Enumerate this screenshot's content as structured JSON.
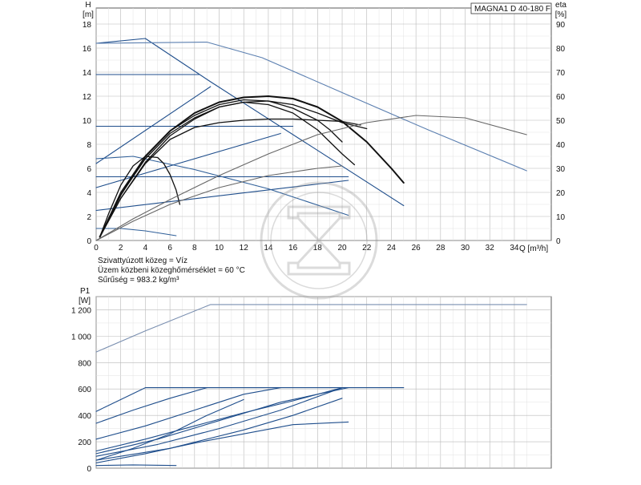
{
  "chart_data": [
    {
      "type": "line",
      "model_label": "MAGNA1 D 40-180 F",
      "y_axis_left": {
        "symbol": "H",
        "unit": "[m]",
        "ylim": [
          0,
          18
        ],
        "ticks": [
          0,
          2,
          4,
          6,
          8,
          10,
          12,
          14,
          16,
          18
        ]
      },
      "y_axis_right": {
        "symbol": "eta",
        "unit": "[%]",
        "ylim": [
          0,
          90
        ],
        "ticks": [
          0,
          10,
          20,
          30,
          40,
          50,
          60,
          70,
          80,
          90
        ]
      },
      "x_axis": {
        "label": "Q [m³/h]",
        "xlim": [
          0,
          37
        ],
        "ticks": [
          0,
          2,
          4,
          6,
          8,
          10,
          12,
          14,
          16,
          18,
          20,
          22,
          24,
          26,
          28,
          30,
          32,
          34
        ]
      },
      "info_lines": [
        "Szivattyúzott közeg = Víz",
        "Üzem közbeni közeghőmérséklet = 60 °C",
        "Sűrűség = 983.2 kg/m³"
      ],
      "grid": true,
      "series": [
        {
          "role": "max-curve",
          "axis": "left",
          "color": "#1f4e8c",
          "x": [
            0,
            4,
            9.3,
            25
          ],
          "y": [
            16.4,
            16.8,
            13.2,
            2.9
          ]
        },
        {
          "role": "max-curve-twin",
          "axis": "left",
          "color": "#5b7fb0",
          "x": [
            0,
            9,
            13.5,
            20,
            27,
            35
          ],
          "y": [
            16.4,
            16.5,
            15.2,
            12.3,
            9.2,
            5.8
          ]
        },
        {
          "role": "constant-pressure",
          "axis": "left",
          "color": "#1f4e8c",
          "x": [
            0,
            8.4
          ],
          "y": [
            13.8,
            13.8
          ]
        },
        {
          "role": "constant-pressure",
          "axis": "left",
          "color": "#1f4e8c",
          "x": [
            0,
            16
          ],
          "y": [
            9.5,
            9.5
          ]
        },
        {
          "role": "constant-pressure",
          "axis": "left",
          "color": "#1f4e8c",
          "x": [
            0,
            20.5
          ],
          "y": [
            5.3,
            5.3
          ]
        },
        {
          "role": "proportional-pressure",
          "axis": "left",
          "color": "#1f4e8c",
          "x": [
            0,
            9.3
          ],
          "y": [
            6.4,
            12.8
          ]
        },
        {
          "role": "proportional-pressure",
          "axis": "left",
          "color": "#1f4e8c",
          "x": [
            0,
            15
          ],
          "y": [
            4.4,
            8.9
          ]
        },
        {
          "role": "proportional-pressure",
          "axis": "left",
          "color": "#1f4e8c",
          "x": [
            0,
            20.5
          ],
          "y": [
            2.5,
            5.0
          ]
        },
        {
          "role": "system-curve",
          "axis": "left",
          "color": "#2f5f99",
          "x": [
            0,
            3,
            8,
            14,
            20.5
          ],
          "y": [
            6.8,
            7.0,
            5.9,
            4.3,
            2.1
          ]
        },
        {
          "role": "system-curve",
          "axis": "left",
          "color": "#2f5f99",
          "x": [
            0,
            2,
            4,
            6.5
          ],
          "y": [
            1.0,
            1.0,
            0.8,
            0.4
          ]
        },
        {
          "role": "duty-curve",
          "axis": "left",
          "color": "#111111",
          "x": [
            0.3,
            1,
            2,
            3,
            4,
            5,
            5.5,
            6,
            6.5,
            6.8
          ],
          "y": [
            0.3,
            2.2,
            4.6,
            6.2,
            7.0,
            6.9,
            6.4,
            5.5,
            4.2,
            3.0
          ]
        },
        {
          "role": "duty-curve",
          "axis": "left",
          "color": "#111111",
          "x": [
            0.3,
            2,
            4,
            6,
            8,
            10,
            12,
            14,
            16,
            18,
            20,
            21
          ],
          "y": [
            0.3,
            3.5,
            6.5,
            8.7,
            10.1,
            11.1,
            11.5,
            11.3,
            10.6,
            9.2,
            7.2,
            6.3
          ]
        },
        {
          "role": "duty-curve",
          "axis": "left",
          "color": "#111111",
          "x": [
            0.3,
            2,
            4,
            6,
            8,
            10,
            12,
            14,
            16,
            18,
            20,
            21.5
          ],
          "y": [
            0.3,
            3.5,
            6.4,
            8.4,
            9.4,
            9.8,
            10.0,
            10.1,
            10.1,
            10.0,
            9.9,
            9.6
          ]
        },
        {
          "role": "duty-curve",
          "axis": "left",
          "color": "#111111",
          "x": [
            0.3,
            2,
            4,
            6,
            8,
            10,
            12,
            14,
            16,
            18,
            19,
            20
          ],
          "y": [
            0.3,
            4.0,
            7.0,
            9.1,
            10.4,
            11.3,
            11.7,
            11.6,
            11.0,
            10.0,
            9.2,
            8.2
          ]
        },
        {
          "role": "duty-curve",
          "axis": "left",
          "color": "#111111",
          "x": [
            0.3,
            2,
            4,
            6,
            8,
            10,
            12,
            14,
            16,
            18,
            20,
            22
          ],
          "y": [
            0.3,
            3.8,
            6.8,
            8.9,
            10.2,
            11.1,
            11.5,
            11.6,
            11.3,
            10.6,
            9.8,
            9.3
          ]
        },
        {
          "role": "duty-curve",
          "axis": "left",
          "color": "#111111",
          "x": [
            0.3,
            2,
            4,
            6,
            8,
            10,
            12,
            14,
            16,
            18,
            20,
            22,
            24,
            25
          ],
          "y": [
            0.3,
            3.8,
            7.0,
            9.1,
            10.6,
            11.5,
            11.9,
            12.0,
            11.8,
            11.1,
            9.9,
            8.2,
            6.0,
            4.8
          ],
          "width": 2
        },
        {
          "role": "efficiency",
          "axis": "right",
          "color": "#666666",
          "x": [
            0,
            3,
            6,
            10,
            14,
            18,
            22,
            26,
            30,
            35
          ],
          "y": [
            0,
            9,
            17,
            27,
            36,
            44,
            49,
            52,
            51,
            44
          ]
        },
        {
          "role": "efficiency",
          "axis": "right",
          "color": "#666666",
          "x": [
            0,
            3,
            6,
            10,
            14,
            18,
            20
          ],
          "y": [
            0,
            8,
            15,
            22,
            27,
            30,
            31
          ]
        }
      ]
    },
    {
      "type": "line",
      "y_axis_left": {
        "symbol": "P1",
        "unit": "[W]",
        "ylim": [
          0,
          1300
        ],
        "ticks": [
          0,
          200,
          400,
          600,
          800,
          1000,
          1200
        ],
        "tick_labels": [
          "0",
          "200",
          "400",
          "600",
          "800",
          "1 000",
          "1 200"
        ]
      },
      "x_axis": {
        "xlim": [
          0,
          37
        ],
        "ticks": [
          0,
          2,
          4,
          6,
          8,
          10,
          12,
          14,
          16,
          18,
          20,
          22,
          24,
          26,
          28,
          30,
          32,
          34
        ]
      },
      "grid": true,
      "series": [
        {
          "role": "max-power",
          "color": "#7a8fb0",
          "x": [
            0,
            4,
            9.3,
            25,
            35
          ],
          "y": [
            880,
            1040,
            1240,
            1240,
            1240
          ]
        },
        {
          "role": "power-curve",
          "color": "#1f4e8c",
          "x": [
            0,
            4,
            25
          ],
          "y": [
            430,
            610,
            610
          ]
        },
        {
          "role": "power-curve",
          "color": "#1f4e8c",
          "x": [
            0,
            3,
            6,
            9
          ],
          "y": [
            340,
            440,
            530,
            610
          ]
        },
        {
          "role": "power-curve",
          "color": "#1f4e8c",
          "x": [
            0,
            4,
            8,
            12,
            15
          ],
          "y": [
            220,
            320,
            440,
            560,
            610
          ]
        },
        {
          "role": "power-curve",
          "color": "#1f4e8c",
          "x": [
            0,
            5,
            10,
            15,
            20.5
          ],
          "y": [
            110,
            220,
            360,
            500,
            610
          ]
        },
        {
          "role": "power-curve",
          "color": "#1f4e8c",
          "x": [
            0,
            5,
            10,
            15,
            20
          ],
          "y": [
            90,
            180,
            300,
            440,
            610
          ]
        },
        {
          "role": "power-curve",
          "color": "#1f4e8c",
          "x": [
            0,
            6,
            12,
            16,
            20
          ],
          "y": [
            60,
            150,
            290,
            400,
            530
          ]
        },
        {
          "role": "power-curve",
          "color": "#1f4e8c",
          "x": [
            0,
            4,
            8,
            12,
            16,
            20.5
          ],
          "y": [
            40,
            110,
            190,
            260,
            330,
            350
          ]
        },
        {
          "role": "power-curve",
          "color": "#1f4e8c",
          "x": [
            0,
            3,
            6.5
          ],
          "y": [
            20,
            25,
            20
          ]
        },
        {
          "role": "power-curve",
          "color": "#1f4e8c",
          "x": [
            0,
            3,
            6,
            9,
            12
          ],
          "y": [
            60,
            150,
            260,
            400,
            520
          ]
        },
        {
          "role": "power-curve",
          "color": "#1f4e8c",
          "x": [
            0,
            4,
            8,
            12,
            16,
            20
          ],
          "y": [
            130,
            220,
            320,
            420,
            510,
            610
          ]
        }
      ]
    }
  ]
}
